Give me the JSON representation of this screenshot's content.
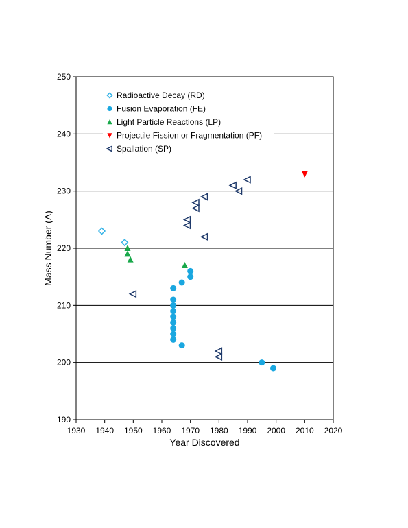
{
  "chart_data": {
    "type": "scatter",
    "xlabel": "Year Discovered",
    "ylabel": "Mass Number (A)",
    "xlim": [
      1930,
      2020
    ],
    "ylim": [
      190,
      250
    ],
    "xticks": [
      "1930",
      "1940",
      "1950",
      "1960",
      "1970",
      "1980",
      "1990",
      "2000",
      "2010",
      "2020"
    ],
    "yticks": [
      "190",
      "200",
      "210",
      "220",
      "230",
      "240",
      "250"
    ],
    "grid": "horizontal",
    "legend_position": "top-left",
    "series": [
      {
        "name": "Radioactive Decay (RD)",
        "marker": "diamond-open",
        "color": "#33b2e6",
        "points": [
          [
            1939,
            223
          ],
          [
            1947,
            221
          ]
        ]
      },
      {
        "name": "Fusion Evaporation (FE)",
        "marker": "circle",
        "color": "#1aa7e0",
        "points": [
          [
            1964,
            213
          ],
          [
            1964,
            211
          ],
          [
            1964,
            210
          ],
          [
            1964,
            209
          ],
          [
            1964,
            208
          ],
          [
            1964,
            207
          ],
          [
            1964,
            206
          ],
          [
            1964,
            205
          ],
          [
            1964,
            204
          ],
          [
            1967,
            214
          ],
          [
            1967,
            203
          ],
          [
            1970,
            216
          ],
          [
            1970,
            215
          ],
          [
            1995,
            200
          ],
          [
            1999,
            199
          ]
        ]
      },
      {
        "name": "Light Particle Reactions (LP)",
        "marker": "triangle-up",
        "color": "#19a84a",
        "points": [
          [
            1948,
            220
          ],
          [
            1948,
            219
          ],
          [
            1949,
            218
          ],
          [
            1968,
            217
          ]
        ]
      },
      {
        "name": "Projectile Fission or Fragmentation (PF)",
        "marker": "triangle-down",
        "color": "#ff0000",
        "points": [
          [
            2010,
            233
          ]
        ]
      },
      {
        "name": "Spallation (SP)",
        "marker": "triangle-left-open",
        "color": "#1f3a6b",
        "points": [
          [
            1950,
            212
          ],
          [
            1969,
            225
          ],
          [
            1969,
            224
          ],
          [
            1972,
            228
          ],
          [
            1972,
            227
          ],
          [
            1975,
            229
          ],
          [
            1975,
            222
          ],
          [
            1980,
            202
          ],
          [
            1980,
            201
          ],
          [
            1985,
            231
          ],
          [
            1987,
            230
          ],
          [
            1990,
            232
          ]
        ]
      }
    ]
  }
}
